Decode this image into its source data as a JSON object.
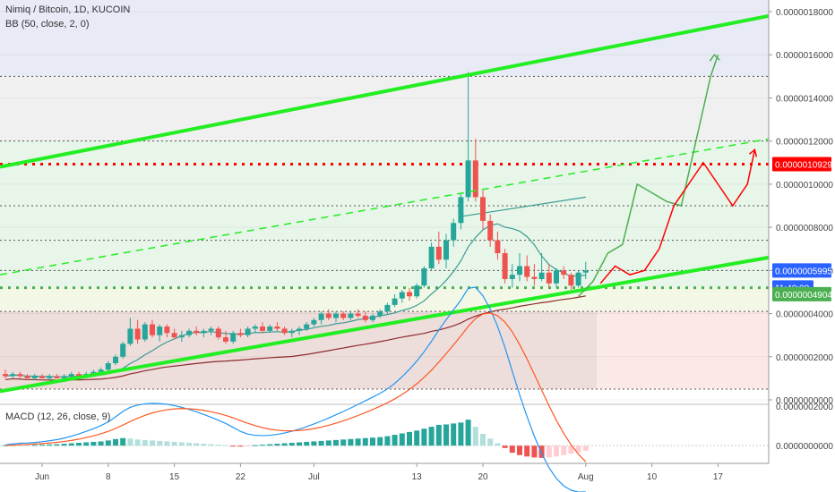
{
  "header": {
    "symbol_line": "Nimiq / Bitcoin, 1D, KUCOIN",
    "indicator_line": "BB (50, close, 2, 0)",
    "macd_line": "MACD (12, 26, close, 9)"
  },
  "price_axis": {
    "ticks": [
      "0.0000018000",
      "0.0000016000",
      "0.0000014000",
      "0.0000012000",
      "0.0000010000",
      "0.0000008000",
      "0.0000006000",
      "0.0000004000",
      "0.0000002000",
      "0.0000000000"
    ],
    "badges": [
      {
        "text": "0.0000010929",
        "color": "#ff0000"
      },
      {
        "text": "0.0000005995",
        "color": "#2962ff"
      },
      {
        "text": "11:40:00",
        "color": "#2962ff"
      },
      {
        "text": "0.0000004904",
        "color": "#4caf50"
      }
    ]
  },
  "macd_axis": {
    "ticks": [
      "0.0000002000",
      "0.0000000000"
    ]
  },
  "time_axis": {
    "labels": [
      "Jun",
      "8",
      "15",
      "22",
      "Jul",
      "13",
      "20",
      "Aug",
      "10",
      "17"
    ]
  },
  "colors": {
    "up": "#26a69a",
    "down": "#ef5350",
    "channel": "#22ee22",
    "target_line": "#ff0000",
    "bb_basis": "#3a9c93",
    "ma": "#8b2c2c",
    "macd": "#2196f3",
    "signal": "#ff5722"
  },
  "chart_data": {
    "type": "candlestick",
    "title": "Nimiq / Bitcoin, 1D, KUCOIN",
    "y_range": [
      0,
      1.8e-06
    ],
    "x_unit": "day index",
    "candles": [
      {
        "o": 1.2e-07,
        "h": 1.4e-07,
        "l": 1e-07,
        "c": 1.1e-07
      },
      {
        "o": 1.1e-07,
        "h": 1.3e-07,
        "l": 1e-07,
        "c": 1.2e-07
      },
      {
        "o": 1.2e-07,
        "h": 1.3e-07,
        "l": 1e-07,
        "c": 1.1e-07
      },
      {
        "o": 1.1e-07,
        "h": 1.2e-07,
        "l": 1e-07,
        "c": 1e-07
      },
      {
        "o": 1e-07,
        "h": 1.2e-07,
        "l": 9e-08,
        "c": 1.1e-07
      },
      {
        "o": 1.1e-07,
        "h": 1.2e-07,
        "l": 1e-07,
        "c": 1e-07
      },
      {
        "o": 1e-07,
        "h": 1.2e-07,
        "l": 9e-08,
        "c": 1.1e-07
      },
      {
        "o": 1.1e-07,
        "h": 1.2e-07,
        "l": 1e-07,
        "c": 1e-07
      },
      {
        "o": 1e-07,
        "h": 1.2e-07,
        "l": 9e-08,
        "c": 1.1e-07
      },
      {
        "o": 1.1e-07,
        "h": 1.3e-07,
        "l": 1e-07,
        "c": 1.2e-07
      },
      {
        "o": 1.2e-07,
        "h": 1.3e-07,
        "l": 1e-07,
        "c": 1.1e-07
      },
      {
        "o": 1.1e-07,
        "h": 1.3e-07,
        "l": 1e-07,
        "c": 1.2e-07
      },
      {
        "o": 1.2e-07,
        "h": 1.4e-07,
        "l": 1.1e-07,
        "c": 1.3e-07
      },
      {
        "o": 1.3e-07,
        "h": 1.5e-07,
        "l": 1.2e-07,
        "c": 1.4e-07
      },
      {
        "o": 1.4e-07,
        "h": 1.8e-07,
        "l": 1.2e-07,
        "c": 1.7e-07
      },
      {
        "o": 1.7e-07,
        "h": 2.1e-07,
        "l": 1.6e-07,
        "c": 2e-07
      },
      {
        "o": 2e-07,
        "h": 2.7e-07,
        "l": 1.9e-07,
        "c": 2.6e-07
      },
      {
        "o": 2.6e-07,
        "h": 3.8e-07,
        "l": 2.5e-07,
        "c": 3.3e-07
      },
      {
        "o": 3.3e-07,
        "h": 3.7e-07,
        "l": 2.6e-07,
        "c": 2.8e-07
      },
      {
        "o": 2.8e-07,
        "h": 3.6e-07,
        "l": 2.7e-07,
        "c": 3.5e-07
      },
      {
        "o": 3.5e-07,
        "h": 3.7e-07,
        "l": 2.9e-07,
        "c": 3e-07
      },
      {
        "o": 3e-07,
        "h": 3.5e-07,
        "l": 2.7e-07,
        "c": 3.4e-07
      },
      {
        "o": 3.4e-07,
        "h": 3.5e-07,
        "l": 2.9e-07,
        "c": 3.1e-07
      },
      {
        "o": 3.1e-07,
        "h": 3.3e-07,
        "l": 2.8e-07,
        "c": 2.9e-07
      },
      {
        "o": 2.9e-07,
        "h": 3.2e-07,
        "l": 2.7e-07,
        "c": 3e-07
      },
      {
        "o": 3e-07,
        "h": 3.3e-07,
        "l": 2.9e-07,
        "c": 3.2e-07
      },
      {
        "o": 3.2e-07,
        "h": 3.4e-07,
        "l": 3e-07,
        "c": 3.1e-07
      },
      {
        "o": 3.1e-07,
        "h": 3.3e-07,
        "l": 2.9e-07,
        "c": 3.2e-07
      },
      {
        "o": 3.2e-07,
        "h": 3.4e-07,
        "l": 3e-07,
        "c": 3.3e-07
      },
      {
        "o": 3.3e-07,
        "h": 3.4e-07,
        "l": 2.8e-07,
        "c": 2.9e-07
      },
      {
        "o": 2.9e-07,
        "h": 3.2e-07,
        "l": 2.6e-07,
        "c": 2.7e-07
      },
      {
        "o": 2.7e-07,
        "h": 3.2e-07,
        "l": 2.6e-07,
        "c": 3.1e-07
      },
      {
        "o": 3.1e-07,
        "h": 3.3e-07,
        "l": 2.9e-07,
        "c": 3e-07
      },
      {
        "o": 3e-07,
        "h": 3.4e-07,
        "l": 2.9e-07,
        "c": 3.3e-07
      },
      {
        "o": 3.3e-07,
        "h": 3.5e-07,
        "l": 3.1e-07,
        "c": 3.4e-07
      },
      {
        "o": 3.4e-07,
        "h": 3.6e-07,
        "l": 3.1e-07,
        "c": 3.2e-07
      },
      {
        "o": 3.2e-07,
        "h": 3.5e-07,
        "l": 3.1e-07,
        "c": 3.4e-07
      },
      {
        "o": 3.4e-07,
        "h": 3.6e-07,
        "l": 3.2e-07,
        "c": 3.3e-07
      },
      {
        "o": 3.3e-07,
        "h": 3.4e-07,
        "l": 3e-07,
        "c": 3.1e-07
      },
      {
        "o": 3.1e-07,
        "h": 3.3e-07,
        "l": 2.9e-07,
        "c": 3.2e-07
      },
      {
        "o": 3.2e-07,
        "h": 3.4e-07,
        "l": 3e-07,
        "c": 3.3e-07
      },
      {
        "o": 3.3e-07,
        "h": 3.6e-07,
        "l": 3.2e-07,
        "c": 3.5e-07
      },
      {
        "o": 3.5e-07,
        "h": 3.8e-07,
        "l": 3.4e-07,
        "c": 3.7e-07
      },
      {
        "o": 3.7e-07,
        "h": 4.1e-07,
        "l": 3.5e-07,
        "c": 4e-07
      },
      {
        "o": 4e-07,
        "h": 4.2e-07,
        "l": 3.7e-07,
        "c": 3.8e-07
      },
      {
        "o": 3.8e-07,
        "h": 4.1e-07,
        "l": 3.6e-07,
        "c": 4e-07
      },
      {
        "o": 4e-07,
        "h": 4.1e-07,
        "l": 3.7e-07,
        "c": 3.8e-07
      },
      {
        "o": 3.8e-07,
        "h": 4.1e-07,
        "l": 3.7e-07,
        "c": 4e-07
      },
      {
        "o": 4e-07,
        "h": 4.2e-07,
        "l": 3.8e-07,
        "c": 3.9e-07
      },
      {
        "o": 3.9e-07,
        "h": 4.1e-07,
        "l": 3.6e-07,
        "c": 3.7e-07
      },
      {
        "o": 3.7e-07,
        "h": 4e-07,
        "l": 3.6e-07,
        "c": 3.9e-07
      },
      {
        "o": 3.9e-07,
        "h": 4.2e-07,
        "l": 3.8e-07,
        "c": 4.1e-07
      },
      {
        "o": 4.1e-07,
        "h": 4.5e-07,
        "l": 4e-07,
        "c": 4.4e-07
      },
      {
        "o": 4.4e-07,
        "h": 4.9e-07,
        "l": 4.3e-07,
        "c": 4.7e-07
      },
      {
        "o": 4.7e-07,
        "h": 5.1e-07,
        "l": 4.5e-07,
        "c": 5e-07
      },
      {
        "o": 5e-07,
        "h": 5.2e-07,
        "l": 4.6e-07,
        "c": 4.8e-07
      },
      {
        "o": 4.8e-07,
        "h": 5.4e-07,
        "l": 4.7e-07,
        "c": 5.3e-07
      },
      {
        "o": 5.3e-07,
        "h": 6.2e-07,
        "l": 5.2e-07,
        "c": 6.1e-07
      },
      {
        "o": 6.1e-07,
        "h": 7.3e-07,
        "l": 6e-07,
        "c": 7.1e-07
      },
      {
        "o": 7.1e-07,
        "h": 7.8e-07,
        "l": 6.3e-07,
        "c": 6.5e-07
      },
      {
        "o": 6.5e-07,
        "h": 7.7e-07,
        "l": 6.1e-07,
        "c": 7.4e-07
      },
      {
        "o": 7.4e-07,
        "h": 8.4e-07,
        "l": 7.1e-07,
        "c": 8.2e-07
      },
      {
        "o": 8.2e-07,
        "h": 9.6e-07,
        "l": 7.9e-07,
        "c": 9.4e-07
      },
      {
        "o": 9.4e-07,
        "h": 1.52e-06,
        "l": 9.2e-07,
        "c": 1.11e-06
      },
      {
        "o": 1.11e-06,
        "h": 1.21e-06,
        "l": 9.2e-07,
        "c": 9.4e-07
      },
      {
        "o": 9.4e-07,
        "h": 9.7e-07,
        "l": 7.9e-07,
        "c": 8.3e-07
      },
      {
        "o": 8.3e-07,
        "h": 8.6e-07,
        "l": 7.1e-07,
        "c": 7.4e-07
      },
      {
        "o": 7.4e-07,
        "h": 7.8e-07,
        "l": 6.5e-07,
        "c": 6.8e-07
      },
      {
        "o": 6.8e-07,
        "h": 7e-07,
        "l": 5.4e-07,
        "c": 5.6e-07
      },
      {
        "o": 5.6e-07,
        "h": 6.3e-07,
        "l": 5.2e-07,
        "c": 5.8e-07
      },
      {
        "o": 5.8e-07,
        "h": 6.8e-07,
        "l": 5.5e-07,
        "c": 6.2e-07
      },
      {
        "o": 6.2e-07,
        "h": 6.7e-07,
        "l": 5.5e-07,
        "c": 5.7e-07
      },
      {
        "o": 5.7e-07,
        "h": 6.3e-07,
        "l": 5.3e-07,
        "c": 5.6e-07
      },
      {
        "o": 5.6e-07,
        "h": 6.8e-07,
        "l": 5.5e-07,
        "c": 5.9e-07
      },
      {
        "o": 5.9e-07,
        "h": 6.3e-07,
        "l": 5.2e-07,
        "c": 5.4e-07
      },
      {
        "o": 5.4e-07,
        "h": 6.1e-07,
        "l": 5.2e-07,
        "c": 6e-07
      },
      {
        "o": 6e-07,
        "h": 6.2e-07,
        "l": 5.6e-07,
        "c": 5.8e-07
      },
      {
        "o": 5.8e-07,
        "h": 5.9e-07,
        "l": 5.1e-07,
        "c": 5.3e-07
      },
      {
        "o": 5.3e-07,
        "h": 6e-07,
        "l": 5.2e-07,
        "c": 5.9e-07
      },
      {
        "o": 5.9e-07,
        "h": 6.4e-07,
        "l": 5.6e-07,
        "c": 6e-07
      }
    ],
    "horizontal_levels": [
      1.5e-06,
      1.2e-06,
      9e-07,
      7.4e-07,
      6e-07,
      5.2e-07,
      4.1e-07,
      5e-08
    ],
    "target_level": 1.0929e-06,
    "macd_y_range": [
      -6e-08,
      1.6e-07
    ],
    "macd_histogram": [
      2e-09,
      4e-09,
      3e-09,
      2e-09,
      3e-09,
      4e-09,
      5e-09,
      6e-09,
      8e-09,
      1e-08,
      1.2e-08,
      1.4e-08,
      1.6e-08,
      1.8e-08,
      2.2e-08,
      2.8e-08,
      3.2e-08,
      3e-08,
      2.6e-08,
      2.4e-08,
      2.2e-08,
      2e-08,
      1.8e-08,
      1.6e-08,
      1.4e-08,
      1.2e-08,
      1e-08,
      8e-09,
      6e-09,
      4e-09,
      2e-09,
      -2e-09,
      -4e-09,
      -2e-09,
      2e-09,
      4e-09,
      6e-09,
      8e-09,
      1e-08,
      1.2e-08,
      1.4e-08,
      1.6e-08,
      1.8e-08,
      2e-08,
      2.2e-08,
      2.4e-08,
      2.6e-08,
      2.8e-08,
      3e-08,
      3.2e-08,
      3.4e-08,
      3.6e-08,
      4e-08,
      4.6e-08,
      5.2e-08,
      5.8e-08,
      6.4e-08,
      7.2e-08,
      8e-08,
      8.8e-08,
      9e-08,
      9.4e-08,
      9.8e-08,
      1.1e-07,
      8e-08,
      5e-08,
      3e-08,
      1e-08,
      -1e-08,
      -3e-08,
      -4e-08,
      -4.6e-08,
      -5e-08,
      -5.2e-08,
      -5e-08,
      -4.6e-08,
      -4e-08,
      -3.4e-08,
      -2.8e-08,
      -2.2e-08
    ]
  }
}
